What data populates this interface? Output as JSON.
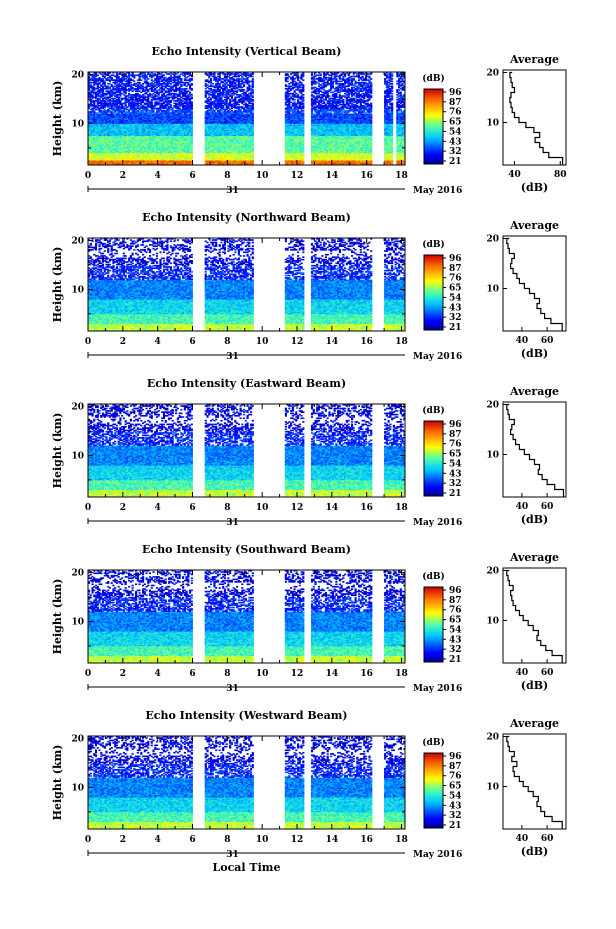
{
  "chart_data": [
    {
      "type": "heatmap",
      "title": "Echo Intensity (Vertical Beam)",
      "ylabel": "Height (km)",
      "x_ticks": [
        "0",
        "2",
        "4",
        "6",
        "8",
        "10",
        "12",
        "14",
        "16",
        "18"
      ],
      "y_ticks": [
        "10",
        "20"
      ],
      "xlim": [
        0,
        18.2
      ],
      "ylim": [
        1.5,
        20.5
      ],
      "date_label": "31",
      "date_right": "May 2016",
      "colorbar": {
        "unit": "(dB)",
        "ticks": [
          "96",
          "87",
          "76",
          "65",
          "54",
          "43",
          "32",
          "21"
        ]
      },
      "data_gaps_hours": [
        [
          6.0,
          6.7
        ],
        [
          9.5,
          11.3
        ],
        [
          12.4,
          12.8
        ],
        [
          16.3,
          17.0
        ],
        [
          17.5,
          17.7
        ]
      ],
      "average_profile": {
        "title": "Average",
        "xlabel": "(dB)",
        "x_ticks": [
          "40",
          "80"
        ],
        "xlim": [
          30,
          85
        ],
        "y": [
          1.5,
          3,
          4,
          5,
          6,
          7,
          8,
          9,
          10,
          11,
          12,
          13,
          14,
          15,
          16,
          17,
          18,
          19,
          20
        ],
        "x": [
          82,
          70,
          65,
          62,
          58,
          62,
          57,
          50,
          44,
          40,
          38,
          37,
          36,
          37,
          40,
          38,
          37,
          36,
          38
        ]
      }
    },
    {
      "type": "heatmap",
      "title": "Echo Intensity (Northward Beam)",
      "ylabel": "Height (km)",
      "x_ticks": [
        "0",
        "2",
        "4",
        "6",
        "8",
        "10",
        "12",
        "14",
        "16",
        "18"
      ],
      "y_ticks": [
        "10",
        "20"
      ],
      "xlim": [
        0,
        18.2
      ],
      "ylim": [
        1.5,
        20.5
      ],
      "date_label": "31",
      "date_right": "May 2016",
      "colorbar": {
        "unit": "(dB)",
        "ticks": [
          "96",
          "87",
          "76",
          "65",
          "54",
          "43",
          "32",
          "21"
        ]
      },
      "data_gaps_hours": [
        [
          6.0,
          6.7
        ],
        [
          9.5,
          11.3
        ],
        [
          12.4,
          12.8
        ],
        [
          16.3,
          17.0
        ]
      ],
      "average_profile": {
        "title": "Average",
        "xlabel": "(dB)",
        "x_ticks": [
          "40",
          "60"
        ],
        "xlim": [
          25,
          75
        ],
        "y": [
          1.5,
          3,
          4,
          5,
          6,
          7,
          8,
          9,
          10,
          11,
          12,
          13,
          14,
          15,
          16,
          17,
          18,
          19,
          20
        ],
        "x": [
          72,
          63,
          58,
          55,
          52,
          54,
          50,
          46,
          42,
          38,
          36,
          33,
          31,
          32,
          34,
          30,
          29,
          28,
          30
        ]
      }
    },
    {
      "type": "heatmap",
      "title": "Echo Intensity (Eastward Beam)",
      "ylabel": "Height (km)",
      "x_ticks": [
        "0",
        "2",
        "4",
        "6",
        "8",
        "10",
        "12",
        "14",
        "16",
        "18"
      ],
      "y_ticks": [
        "10",
        "20"
      ],
      "xlim": [
        0,
        18.2
      ],
      "ylim": [
        1.5,
        20.5
      ],
      "date_label": "31",
      "date_right": "May 2016",
      "colorbar": {
        "unit": "(dB)",
        "ticks": [
          "96",
          "87",
          "76",
          "65",
          "54",
          "43",
          "32",
          "21"
        ]
      },
      "data_gaps_hours": [
        [
          6.0,
          6.7
        ],
        [
          9.5,
          11.3
        ],
        [
          12.4,
          12.8
        ],
        [
          16.3,
          17.0
        ]
      ],
      "average_profile": {
        "title": "Average",
        "xlabel": "(dB)",
        "x_ticks": [
          "40",
          "60"
        ],
        "xlim": [
          25,
          75
        ],
        "y": [
          1.5,
          3,
          4,
          5,
          6,
          7,
          8,
          9,
          10,
          11,
          12,
          13,
          14,
          15,
          16,
          17,
          18,
          19,
          20
        ],
        "x": [
          73,
          66,
          60,
          56,
          53,
          54,
          50,
          46,
          42,
          38,
          35,
          33,
          31,
          32,
          34,
          30,
          29,
          28,
          30
        ]
      }
    },
    {
      "type": "heatmap",
      "title": "Echo Intensity (Southward Beam)",
      "ylabel": "Height (km)",
      "x_ticks": [
        "0",
        "2",
        "4",
        "6",
        "8",
        "10",
        "12",
        "14",
        "16",
        "18"
      ],
      "y_ticks": [
        "10",
        "20"
      ],
      "xlim": [
        0,
        18.2
      ],
      "ylim": [
        1.5,
        20.5
      ],
      "date_label": "31",
      "date_right": "May 2016",
      "colorbar": {
        "unit": "(dB)",
        "ticks": [
          "96",
          "87",
          "76",
          "65",
          "54",
          "43",
          "32",
          "21"
        ]
      },
      "data_gaps_hours": [
        [
          6.0,
          6.7
        ],
        [
          9.5,
          11.3
        ],
        [
          12.4,
          12.8
        ],
        [
          16.3,
          17.0
        ]
      ],
      "average_profile": {
        "title": "Average",
        "xlabel": "(dB)",
        "x_ticks": [
          "40",
          "60"
        ],
        "xlim": [
          25,
          75
        ],
        "y": [
          1.5,
          3,
          4,
          5,
          6,
          7,
          8,
          9,
          10,
          11,
          12,
          13,
          14,
          15,
          16,
          17,
          18,
          19,
          20
        ],
        "x": [
          72,
          64,
          59,
          55,
          52,
          53,
          49,
          45,
          41,
          38,
          35,
          33,
          32,
          31,
          33,
          30,
          29,
          28,
          30
        ]
      }
    },
    {
      "type": "heatmap",
      "title": "Echo Intensity (Westward Beam)",
      "ylabel": "Height (km)",
      "xlabel": "Local Time",
      "x_ticks": [
        "0",
        "2",
        "4",
        "6",
        "8",
        "10",
        "12",
        "14",
        "16",
        "18"
      ],
      "y_ticks": [
        "10",
        "20"
      ],
      "xlim": [
        0,
        18.2
      ],
      "ylim": [
        1.5,
        20.5
      ],
      "date_label": "31",
      "date_right": "May 2016",
      "colorbar": {
        "unit": "(dB)",
        "ticks": [
          "96",
          "87",
          "76",
          "65",
          "54",
          "43",
          "32",
          "21"
        ]
      },
      "data_gaps_hours": [
        [
          6.0,
          6.7
        ],
        [
          9.5,
          11.3
        ],
        [
          12.4,
          12.8
        ],
        [
          16.3,
          17.0
        ]
      ],
      "average_profile": {
        "title": "Average",
        "xlabel": "(dB)",
        "x_ticks": [
          "40",
          "60"
        ],
        "xlim": [
          25,
          75
        ],
        "y": [
          1.5,
          3,
          4,
          5,
          6,
          7,
          8,
          9,
          10,
          11,
          12,
          13,
          14,
          15,
          16,
          17,
          18,
          19,
          20
        ],
        "x": [
          72,
          64,
          58,
          55,
          52,
          53,
          49,
          45,
          41,
          38,
          34,
          33,
          36,
          32,
          34,
          30,
          29,
          28,
          30
        ]
      }
    }
  ]
}
